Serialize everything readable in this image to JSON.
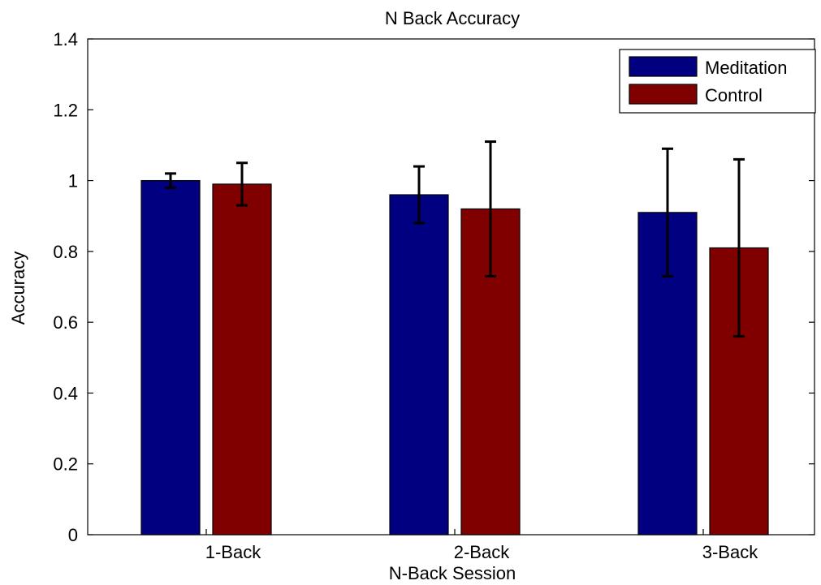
{
  "chart_data": {
    "type": "bar",
    "title": "N Back Accuracy",
    "xlabel": "N-Back Session",
    "ylabel": "Accuracy",
    "categories": [
      "1-Back",
      "2-Back",
      "3-Back"
    ],
    "series": [
      {
        "name": "Meditation",
        "color": "#000080",
        "values": [
          1.0,
          0.96,
          0.91
        ],
        "error": [
          0.02,
          0.08,
          0.18
        ]
      },
      {
        "name": "Control",
        "color": "#800000",
        "values": [
          0.99,
          0.92,
          0.81
        ],
        "error": [
          0.06,
          0.19,
          0.25
        ]
      }
    ],
    "ylim": [
      0,
      1.4
    ],
    "yticks": [
      "0",
      "0.2",
      "0.4",
      "0.6",
      "0.8",
      "1",
      "1.2",
      "1.4"
    ],
    "grid": false,
    "legend_position": "top-right"
  }
}
